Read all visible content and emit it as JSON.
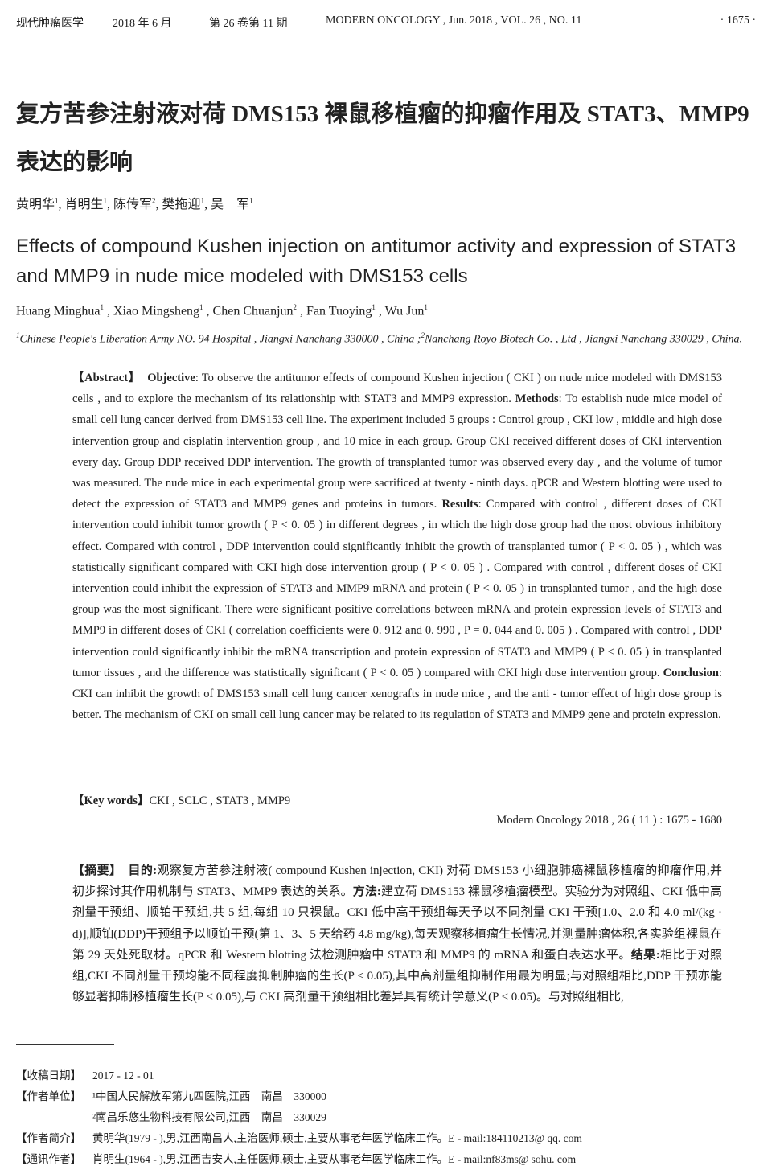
{
  "header": {
    "journal_zh": "现代肿瘤医学",
    "date_zh": "2018 年 6 月",
    "volume_zh": "第 26 卷第 11 期",
    "journal_en": "MODERN ONCOLOGY , Jun. 2018 , VOL. 26 , NO. 11",
    "page": "· 1675 ·"
  },
  "title_zh": "复方苦参注射液对荷 DMS153 裸鼠移植瘤的抑瘤作用及 STAT3、MMP9 表达的影响",
  "authors_zh": [
    {
      "name": "黄明华",
      "sup": "1"
    },
    {
      "name": "肖明生",
      "sup": "1"
    },
    {
      "name": "陈传军",
      "sup": "2"
    },
    {
      "name": "樊拖迎",
      "sup": "1"
    },
    {
      "name": "吴　军",
      "sup": "1"
    }
  ],
  "title_en": "Effects of compound Kushen injection on antitumor activity and expression of STAT3 and MMP9 in nude mice modeled with DMS153 cells",
  "authors_en": [
    {
      "name": "Huang Minghua",
      "sup": "1"
    },
    {
      "name": "Xiao Mingsheng",
      "sup": "1"
    },
    {
      "name": "Chen Chuanjun",
      "sup": "2"
    },
    {
      "name": "Fan Tuoying",
      "sup": "1"
    },
    {
      "name": "Wu Jun",
      "sup": "1"
    }
  ],
  "affiliations_en": {
    "sup1": "1",
    "a1": "Chinese People's Liberation Army NO. 94 Hospital , Jiangxi Nanchang 330000 , China ;",
    "sup2": "2",
    "a2": "Nanchang Royo Biotech Co. , Ltd , Jiangxi Nanchang 330029 , China."
  },
  "abstract_en": {
    "label": "【Abstract】",
    "objective_label": "Objective",
    "objective": ": To observe the antitumor effects of compound Kushen injection ( CKI ) on nude mice modeled with DMS153 cells , and to explore the mechanism of its relationship with STAT3 and MMP9 expression.",
    "methods_label": "Methods",
    "methods": ": To establish nude mice model of small cell lung cancer derived from DMS153 cell line. The experiment included 5 groups : Control group , CKI low , middle and high dose intervention group and cisplatin intervention group , and 10 mice in each group. Group CKI received different doses of CKI intervention every day. Group DDP received DDP intervention. The growth of transplanted tumor was observed every day , and the volume of tumor was measured. The nude mice in each experimental group were sacrificed at twenty - ninth days. qPCR and Western blotting were used to detect the expression of STAT3 and MMP9 genes and proteins in tumors.",
    "results_label": "Results",
    "results": ": Compared with control , different doses of CKI intervention could inhibit tumor growth ( P < 0. 05 ) in different degrees , in which the high dose group had the most obvious inhibitory effect. Compared with control , DDP intervention could significantly inhibit the growth of transplanted tumor ( P < 0. 05 ) , which was statistically significant compared with CKI high dose intervention group ( P < 0. 05 ) . Compared with control , different doses of CKI intervention could inhibit the expression of STAT3 and MMP9 mRNA and protein ( P < 0. 05 ) in transplanted tumor , and the high dose group was the most significant. There were significant positive correlations between mRNA and protein expression levels of STAT3 and MMP9 in different doses of CKI ( correlation coefficients were 0. 912 and 0. 990 , P = 0. 044 and 0. 005 ) . Compared with control , DDP intervention could significantly inhibit the mRNA transcription and protein expression of STAT3 and MMP9 ( P < 0. 05 ) in transplanted tumor tissues , and the difference was statistically significant ( P < 0. 05 ) compared with CKI high dose intervention group.",
    "conclusion_label": "Conclusion",
    "conclusion": ": CKI can inhibit the growth of DMS153 small cell lung cancer xenografts in nude mice , and the anti - tumor effect of high dose group is better. The mechanism of CKI on small cell lung cancer may be related to its regulation of STAT3 and MMP9 gene and protein expression."
  },
  "keywords": {
    "label": "【Key words】",
    "value": "CKI , SCLC , STAT3 , MMP9"
  },
  "citation": "Modern Oncology 2018 , 26 ( 11 ) : 1675 - 1680",
  "abstract_zh": {
    "label": "【摘要】",
    "objective_label": "目的:",
    "objective": "观察复方苦参注射液( compound Kushen injection, CKI) 对荷 DMS153 小细胞肺癌裸鼠移植瘤的抑瘤作用,并初步探讨其作用机制与 STAT3、MMP9 表达的关系。",
    "methods_label": "方法:",
    "methods": "建立荷 DMS153 裸鼠移植瘤模型。实验分为对照组、CKI 低中高剂量干预组、顺铂干预组,共 5 组,每组 10 只裸鼠。CKI 低中高干预组每天予以不同剂量 CKI 干预[1.0、2.0 和 4.0 ml/(kg · d)],顺铂(DDP)干预组予以顺铂干预(第 1、3、5 天给药 4.8 mg/kg),每天观察移植瘤生长情况,并测量肿瘤体积,各实验组裸鼠在第 29 天处死取材。qPCR 和 Western blotting 法检测肿瘤中 STAT3 和 MMP9 的 mRNA 和蛋白表达水平。",
    "results_label": "结果:",
    "results": "相比于对照组,CKI 不同剂量干预均能不同程度抑制肿瘤的生长(P < 0.05),其中高剂量组抑制作用最为明显;与对照组相比,DDP 干预亦能够显著抑制移植瘤生长(P < 0.05),与 CKI 高剂量干预组相比差异具有统计学意义(P < 0.05)。与对照组相比,"
  },
  "notes": [
    {
      "label": "【收稿日期】",
      "lines": [
        "2017 - 12 - 01"
      ]
    },
    {
      "label": "【作者单位】",
      "lines": [
        "¹中国人民解放军第九四医院,江西　南昌　330000",
        "²南昌乐悠生物科技有限公司,江西　南昌　330029"
      ]
    },
    {
      "label": "【作者简介】",
      "lines": [
        "黄明华(1979 - ),男,江西南昌人,主治医师,硕士,主要从事老年医学临床工作。E - mail:184110213@ qq. com"
      ]
    },
    {
      "label": "【通讯作者】",
      "lines": [
        "肖明生(1964 - ),男,江西吉安人,主任医师,硕士,主要从事老年医学临床工作。E - mail:nf83ms@ sohu. com"
      ]
    }
  ]
}
